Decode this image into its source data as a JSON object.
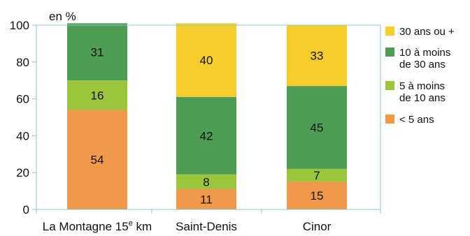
{
  "chart_data": {
    "type": "bar",
    "stacked": true,
    "unit_label": "en %",
    "categories": [
      "La Montagne 15e km",
      "Saint-Denis",
      "Cinor"
    ],
    "category_label_parts": [
      [
        "La Montagne 15",
        "e",
        " km"
      ],
      [
        "Saint-Denis",
        "",
        ""
      ],
      [
        "Cinor",
        "",
        ""
      ]
    ],
    "series": [
      {
        "name": "< 5 ans",
        "color": "#f0994a",
        "values": [
          54,
          11,
          15
        ]
      },
      {
        "name": "5 à moins de 10 ans",
        "color": "#9bc53d",
        "values": [
          16,
          8,
          7
        ]
      },
      {
        "name": "10 à moins de 30 ans",
        "color": "#4f9d55",
        "values": [
          31,
          42,
          45
        ]
      },
      {
        "name": "30 ans ou +",
        "color": "#f6cd2c",
        "values": [
          0,
          40,
          33
        ]
      }
    ],
    "legend": [
      {
        "lines": [
          "30 ans ou +"
        ],
        "color": "#f6cd2c"
      },
      {
        "lines": [
          "10 à moins",
          "de 30 ans"
        ],
        "color": "#4f9d55"
      },
      {
        "lines": [
          "5 à moins",
          "de 10 ans"
        ],
        "color": "#9bc53d"
      },
      {
        "lines": [
          "< 5 ans"
        ],
        "color": "#f0994a"
      }
    ],
    "legend_position": "right",
    "ylim": [
      0,
      100
    ],
    "yticks": [
      0,
      20,
      40,
      60,
      80,
      100
    ],
    "grid": false,
    "axis_color": "#8cc4d6"
  }
}
